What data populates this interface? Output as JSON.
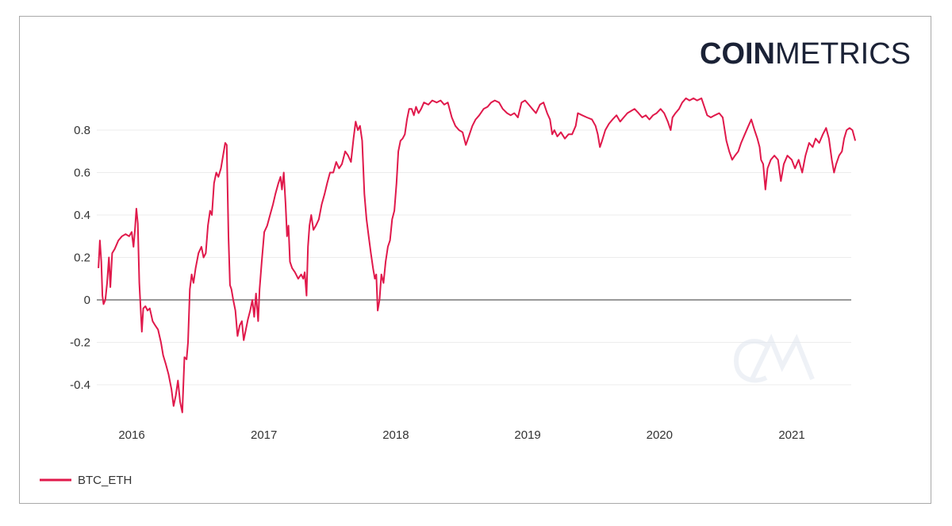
{
  "brand": {
    "logo_bold": "COIN",
    "logo_light": "METRICS",
    "color": "#1b2236"
  },
  "chart_data": {
    "type": "line",
    "title": "",
    "xlabel": "",
    "ylabel": "",
    "x_tick_labels": [
      "2016",
      "2017",
      "2018",
      "2019",
      "2020",
      "2021"
    ],
    "y_tick_labels": [
      "0.8",
      "0.6",
      "0.4",
      "0.2",
      "0",
      "-0.2",
      "-0.4"
    ],
    "y_tick_values": [
      0.8,
      0.6,
      0.4,
      0.2,
      0,
      -0.2,
      -0.4
    ],
    "x_tick_dates": [
      "2016-01-01",
      "2017-01-01",
      "2018-01-01",
      "2019-01-01",
      "2020-01-01",
      "2021-01-01"
    ],
    "xlim": [
      "2015-10-01",
      "2021-07-01"
    ],
    "ylim": [
      -0.55,
      0.95
    ],
    "grid": true,
    "zero_line": true,
    "legend_position": "bottom-left",
    "series": [
      {
        "name": "BTC_ETH",
        "color": "#e0194b",
        "points": [
          [
            "2015-10-01",
            0.15
          ],
          [
            "2015-10-05",
            0.28
          ],
          [
            "2015-10-09",
            0.18
          ],
          [
            "2015-10-12",
            0.02
          ],
          [
            "2015-10-15",
            -0.02
          ],
          [
            "2015-10-20",
            0.0
          ],
          [
            "2015-10-25",
            0.08
          ],
          [
            "2015-10-30",
            0.2
          ],
          [
            "2015-11-03",
            0.06
          ],
          [
            "2015-11-08",
            0.22
          ],
          [
            "2015-11-15",
            0.24
          ],
          [
            "2015-11-25",
            0.28
          ],
          [
            "2015-12-05",
            0.3
          ],
          [
            "2015-12-15",
            0.31
          ],
          [
            "2015-12-25",
            0.3
          ],
          [
            "2016-01-01",
            0.32
          ],
          [
            "2016-01-06",
            0.25
          ],
          [
            "2016-01-10",
            0.33
          ],
          [
            "2016-01-14",
            0.43
          ],
          [
            "2016-01-18",
            0.36
          ],
          [
            "2016-01-22",
            0.08
          ],
          [
            "2016-01-26",
            -0.05
          ],
          [
            "2016-01-29",
            -0.15
          ],
          [
            "2016-02-02",
            -0.04
          ],
          [
            "2016-02-08",
            -0.03
          ],
          [
            "2016-02-14",
            -0.05
          ],
          [
            "2016-02-20",
            -0.04
          ],
          [
            "2016-02-28",
            -0.1
          ],
          [
            "2016-03-06",
            -0.12
          ],
          [
            "2016-03-14",
            -0.14
          ],
          [
            "2016-03-22",
            -0.2
          ],
          [
            "2016-03-28",
            -0.26
          ],
          [
            "2016-04-04",
            -0.3
          ],
          [
            "2016-04-12",
            -0.35
          ],
          [
            "2016-04-20",
            -0.42
          ],
          [
            "2016-04-26",
            -0.5
          ],
          [
            "2016-05-02",
            -0.45
          ],
          [
            "2016-05-08",
            -0.38
          ],
          [
            "2016-05-14",
            -0.48
          ],
          [
            "2016-05-20",
            -0.53
          ],
          [
            "2016-05-26",
            -0.27
          ],
          [
            "2016-06-01",
            -0.28
          ],
          [
            "2016-06-05",
            -0.2
          ],
          [
            "2016-06-10",
            0.05
          ],
          [
            "2016-06-15",
            0.12
          ],
          [
            "2016-06-20",
            0.08
          ],
          [
            "2016-06-26",
            0.15
          ],
          [
            "2016-07-04",
            0.22
          ],
          [
            "2016-07-12",
            0.25
          ],
          [
            "2016-07-18",
            0.2
          ],
          [
            "2016-07-24",
            0.22
          ],
          [
            "2016-07-30",
            0.35
          ],
          [
            "2016-08-05",
            0.42
          ],
          [
            "2016-08-10",
            0.4
          ],
          [
            "2016-08-16",
            0.55
          ],
          [
            "2016-08-22",
            0.6
          ],
          [
            "2016-08-28",
            0.58
          ],
          [
            "2016-09-04",
            0.62
          ],
          [
            "2016-09-10",
            0.68
          ],
          [
            "2016-09-16",
            0.74
          ],
          [
            "2016-09-20",
            0.73
          ],
          [
            "2016-09-25",
            0.3
          ],
          [
            "2016-09-29",
            0.07
          ],
          [
            "2016-10-03",
            0.05
          ],
          [
            "2016-10-08",
            0.0
          ],
          [
            "2016-10-14",
            -0.05
          ],
          [
            "2016-10-20",
            -0.17
          ],
          [
            "2016-10-26",
            -0.12
          ],
          [
            "2016-11-01",
            -0.1
          ],
          [
            "2016-11-06",
            -0.19
          ],
          [
            "2016-11-12",
            -0.14
          ],
          [
            "2016-11-18",
            -0.09
          ],
          [
            "2016-11-24",
            -0.05
          ],
          [
            "2016-11-30",
            0.0
          ],
          [
            "2016-12-05",
            -0.08
          ],
          [
            "2016-12-10",
            0.03
          ],
          [
            "2016-12-16",
            -0.1
          ],
          [
            "2016-12-20",
            0.05
          ],
          [
            "2016-12-26",
            0.18
          ],
          [
            "2017-01-02",
            0.32
          ],
          [
            "2017-01-10",
            0.35
          ],
          [
            "2017-01-18",
            0.4
          ],
          [
            "2017-01-26",
            0.45
          ],
          [
            "2017-02-02",
            0.5
          ],
          [
            "2017-02-10",
            0.55
          ],
          [
            "2017-02-16",
            0.58
          ],
          [
            "2017-02-20",
            0.52
          ],
          [
            "2017-02-25",
            0.6
          ],
          [
            "2017-03-02",
            0.45
          ],
          [
            "2017-03-06",
            0.3
          ],
          [
            "2017-03-10",
            0.35
          ],
          [
            "2017-03-14",
            0.18
          ],
          [
            "2017-03-20",
            0.15
          ],
          [
            "2017-03-28",
            0.13
          ],
          [
            "2017-04-06",
            0.1
          ],
          [
            "2017-04-14",
            0.12
          ],
          [
            "2017-04-20",
            0.1
          ],
          [
            "2017-04-24",
            0.13
          ],
          [
            "2017-04-29",
            0.02
          ],
          [
            "2017-05-03",
            0.25
          ],
          [
            "2017-05-07",
            0.35
          ],
          [
            "2017-05-12",
            0.4
          ],
          [
            "2017-05-18",
            0.33
          ],
          [
            "2017-05-25",
            0.35
          ],
          [
            "2017-06-02",
            0.38
          ],
          [
            "2017-06-10",
            0.45
          ],
          [
            "2017-06-18",
            0.5
          ],
          [
            "2017-06-25",
            0.55
          ],
          [
            "2017-07-03",
            0.6
          ],
          [
            "2017-07-12",
            0.6
          ],
          [
            "2017-07-20",
            0.65
          ],
          [
            "2017-07-28",
            0.62
          ],
          [
            "2017-08-05",
            0.64
          ],
          [
            "2017-08-14",
            0.7
          ],
          [
            "2017-08-22",
            0.68
          ],
          [
            "2017-08-30",
            0.65
          ],
          [
            "2017-09-06",
            0.76
          ],
          [
            "2017-09-12",
            0.84
          ],
          [
            "2017-09-18",
            0.8
          ],
          [
            "2017-09-24",
            0.82
          ],
          [
            "2017-09-30",
            0.75
          ],
          [
            "2017-10-06",
            0.5
          ],
          [
            "2017-10-12",
            0.38
          ],
          [
            "2017-10-18",
            0.3
          ],
          [
            "2017-10-24",
            0.22
          ],
          [
            "2017-10-30",
            0.15
          ],
          [
            "2017-11-04",
            0.1
          ],
          [
            "2017-11-08",
            0.12
          ],
          [
            "2017-11-12",
            -0.05
          ],
          [
            "2017-11-17",
            0.0
          ],
          [
            "2017-11-22",
            0.12
          ],
          [
            "2017-11-28",
            0.08
          ],
          [
            "2017-12-04",
            0.18
          ],
          [
            "2017-12-10",
            0.25
          ],
          [
            "2017-12-16",
            0.28
          ],
          [
            "2017-12-22",
            0.38
          ],
          [
            "2017-12-28",
            0.42
          ],
          [
            "2018-01-03",
            0.55
          ],
          [
            "2018-01-08",
            0.7
          ],
          [
            "2018-01-14",
            0.75
          ],
          [
            "2018-01-20",
            0.76
          ],
          [
            "2018-01-26",
            0.78
          ],
          [
            "2018-02-01",
            0.85
          ],
          [
            "2018-02-07",
            0.9
          ],
          [
            "2018-02-14",
            0.9
          ],
          [
            "2018-02-20",
            0.87
          ],
          [
            "2018-02-26",
            0.91
          ],
          [
            "2018-03-05",
            0.88
          ],
          [
            "2018-03-12",
            0.9
          ],
          [
            "2018-03-20",
            0.93
          ],
          [
            "2018-04-01",
            0.92
          ],
          [
            "2018-04-12",
            0.94
          ],
          [
            "2018-04-24",
            0.93
          ],
          [
            "2018-05-05",
            0.94
          ],
          [
            "2018-05-15",
            0.92
          ],
          [
            "2018-05-25",
            0.93
          ],
          [
            "2018-06-05",
            0.86
          ],
          [
            "2018-06-15",
            0.82
          ],
          [
            "2018-06-25",
            0.8
          ],
          [
            "2018-07-05",
            0.79
          ],
          [
            "2018-07-14",
            0.73
          ],
          [
            "2018-07-22",
            0.77
          ],
          [
            "2018-08-01",
            0.82
          ],
          [
            "2018-08-10",
            0.85
          ],
          [
            "2018-08-20",
            0.87
          ],
          [
            "2018-09-01",
            0.9
          ],
          [
            "2018-09-12",
            0.91
          ],
          [
            "2018-09-22",
            0.93
          ],
          [
            "2018-10-02",
            0.94
          ],
          [
            "2018-10-14",
            0.93
          ],
          [
            "2018-10-24",
            0.9
          ],
          [
            "2018-11-05",
            0.88
          ],
          [
            "2018-11-15",
            0.87
          ],
          [
            "2018-11-25",
            0.88
          ],
          [
            "2018-12-05",
            0.86
          ],
          [
            "2018-12-15",
            0.93
          ],
          [
            "2018-12-25",
            0.94
          ],
          [
            "2019-01-04",
            0.92
          ],
          [
            "2019-01-14",
            0.9
          ],
          [
            "2019-01-24",
            0.88
          ],
          [
            "2019-02-04",
            0.92
          ],
          [
            "2019-02-14",
            0.93
          ],
          [
            "2019-02-24",
            0.88
          ],
          [
            "2019-03-04",
            0.85
          ],
          [
            "2019-03-10",
            0.78
          ],
          [
            "2019-03-16",
            0.8
          ],
          [
            "2019-03-24",
            0.77
          ],
          [
            "2019-04-03",
            0.79
          ],
          [
            "2019-04-14",
            0.76
          ],
          [
            "2019-04-24",
            0.78
          ],
          [
            "2019-05-04",
            0.78
          ],
          [
            "2019-05-14",
            0.82
          ],
          [
            "2019-05-20",
            0.88
          ],
          [
            "2019-06-01",
            0.87
          ],
          [
            "2019-06-14",
            0.86
          ],
          [
            "2019-06-28",
            0.85
          ],
          [
            "2019-07-08",
            0.82
          ],
          [
            "2019-07-14",
            0.78
          ],
          [
            "2019-07-20",
            0.72
          ],
          [
            "2019-07-26",
            0.75
          ],
          [
            "2019-08-04",
            0.8
          ],
          [
            "2019-08-14",
            0.83
          ],
          [
            "2019-08-24",
            0.85
          ],
          [
            "2019-09-04",
            0.87
          ],
          [
            "2019-09-14",
            0.84
          ],
          [
            "2019-09-24",
            0.86
          ],
          [
            "2019-10-04",
            0.88
          ],
          [
            "2019-10-14",
            0.89
          ],
          [
            "2019-10-24",
            0.9
          ],
          [
            "2019-11-04",
            0.88
          ],
          [
            "2019-11-14",
            0.86
          ],
          [
            "2019-11-24",
            0.87
          ],
          [
            "2019-12-04",
            0.85
          ],
          [
            "2019-12-14",
            0.87
          ],
          [
            "2019-12-24",
            0.88
          ],
          [
            "2020-01-04",
            0.9
          ],
          [
            "2020-01-14",
            0.88
          ],
          [
            "2020-01-24",
            0.84
          ],
          [
            "2020-02-01",
            0.8
          ],
          [
            "2020-02-06",
            0.86
          ],
          [
            "2020-02-14",
            0.88
          ],
          [
            "2020-02-24",
            0.9
          ],
          [
            "2020-03-04",
            0.93
          ],
          [
            "2020-03-14",
            0.95
          ],
          [
            "2020-03-24",
            0.94
          ],
          [
            "2020-04-04",
            0.95
          ],
          [
            "2020-04-14",
            0.94
          ],
          [
            "2020-04-26",
            0.95
          ],
          [
            "2020-05-04",
            0.91
          ],
          [
            "2020-05-12",
            0.87
          ],
          [
            "2020-05-22",
            0.86
          ],
          [
            "2020-06-02",
            0.87
          ],
          [
            "2020-06-14",
            0.88
          ],
          [
            "2020-06-24",
            0.86
          ],
          [
            "2020-07-04",
            0.75
          ],
          [
            "2020-07-12",
            0.7
          ],
          [
            "2020-07-20",
            0.66
          ],
          [
            "2020-07-28",
            0.68
          ],
          [
            "2020-08-06",
            0.7
          ],
          [
            "2020-08-14",
            0.74
          ],
          [
            "2020-08-24",
            0.78
          ],
          [
            "2020-09-03",
            0.82
          ],
          [
            "2020-09-11",
            0.85
          ],
          [
            "2020-09-20",
            0.8
          ],
          [
            "2020-09-28",
            0.76
          ],
          [
            "2020-10-04",
            0.72
          ],
          [
            "2020-10-08",
            0.66
          ],
          [
            "2020-10-14",
            0.64
          ],
          [
            "2020-10-20",
            0.52
          ],
          [
            "2020-10-26",
            0.62
          ],
          [
            "2020-11-04",
            0.66
          ],
          [
            "2020-11-14",
            0.68
          ],
          [
            "2020-11-24",
            0.66
          ],
          [
            "2020-12-02",
            0.56
          ],
          [
            "2020-12-10",
            0.64
          ],
          [
            "2020-12-20",
            0.68
          ],
          [
            "2021-01-01",
            0.66
          ],
          [
            "2021-01-10",
            0.62
          ],
          [
            "2021-01-20",
            0.66
          ],
          [
            "2021-01-30",
            0.6
          ],
          [
            "2021-02-08",
            0.68
          ],
          [
            "2021-02-18",
            0.74
          ],
          [
            "2021-02-28",
            0.72
          ],
          [
            "2021-03-08",
            0.76
          ],
          [
            "2021-03-18",
            0.74
          ],
          [
            "2021-03-28",
            0.78
          ],
          [
            "2021-04-06",
            0.81
          ],
          [
            "2021-04-14",
            0.76
          ],
          [
            "2021-04-22",
            0.66
          ],
          [
            "2021-04-28",
            0.6
          ],
          [
            "2021-05-04",
            0.64
          ],
          [
            "2021-05-12",
            0.68
          ],
          [
            "2021-05-20",
            0.7
          ],
          [
            "2021-05-26",
            0.76
          ],
          [
            "2021-06-02",
            0.8
          ],
          [
            "2021-06-10",
            0.81
          ],
          [
            "2021-06-18",
            0.8
          ],
          [
            "2021-06-26",
            0.75
          ]
        ]
      }
    ]
  }
}
